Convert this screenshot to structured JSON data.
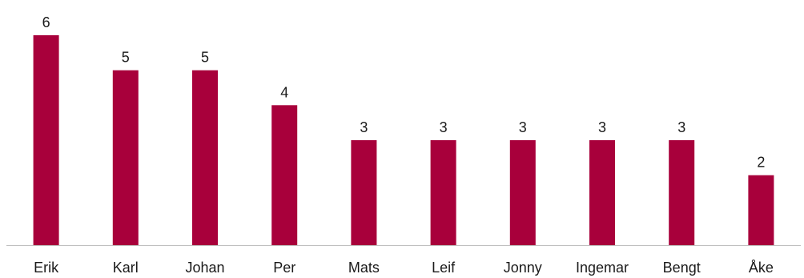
{
  "chart_data": {
    "type": "bar",
    "title": "",
    "xlabel": "",
    "ylabel": "",
    "categories": [
      "Erik",
      "Karl",
      "Johan",
      "Per",
      "Mats",
      "Leif",
      "Jonny",
      "Ingemar",
      "Bengt",
      "Åke"
    ],
    "values": [
      6,
      5,
      5,
      4,
      3,
      3,
      3,
      3,
      3,
      2
    ],
    "data_labels": [
      "6",
      "5",
      "5",
      "4",
      "3",
      "3",
      "3",
      "3",
      "3",
      "2"
    ],
    "ylim": [
      0,
      6
    ],
    "grid": false,
    "legend": "none",
    "bar_color": "#A8003B",
    "axis_color": "#BFBFBF"
  }
}
